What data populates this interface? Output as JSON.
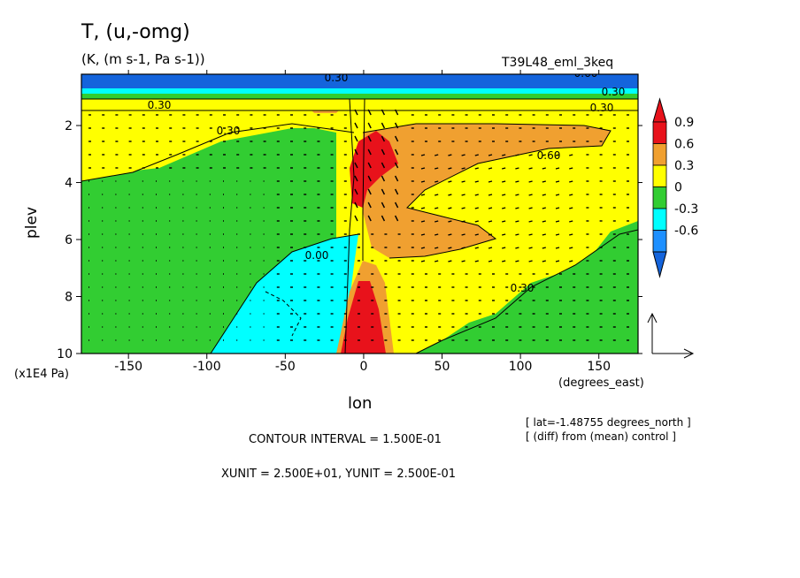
{
  "header": {
    "title": "T, (u,-omg)",
    "subtitle": "(K, (m s-1, Pa s-1))",
    "run_name": "T39L48_eml_3keq"
  },
  "footer": {
    "contour_interval": "CONTOUR INTERVAL = 1.500E-01",
    "units_line": "XUNIT = 2.500E+01, YUNIT = 2.500E-01",
    "lat_info": "[ lat=-1.48755 degrees_north ]",
    "diff_info": "[ (diff) from (mean) control ]"
  },
  "colors": {
    "red": "#e8121b",
    "orange": "#f0a030",
    "yellow": "#ffff00",
    "green": "#32cd32",
    "cyan": "#00ffff",
    "blue": "#1e90ff",
    "deepblue": "#1464dc"
  },
  "chart_data": {
    "type": "heatmap",
    "title": "T, (u,-omg)",
    "subtitle": "(K, (m s-1, Pa s-1))",
    "xlabel": "lon",
    "ylabel": "plev",
    "x_unit": "(degrees_east)",
    "y_unit": "(x1E4 Pa)",
    "xlim": [
      -180,
      175
    ],
    "ylim": [
      0.2,
      10
    ],
    "y_inverted": true,
    "x_ticks": [
      -150,
      -100,
      -50,
      0,
      50,
      100,
      150
    ],
    "y_ticks": [
      2,
      4,
      6,
      8,
      10
    ],
    "colorbar": {
      "levels": [
        "0.9",
        "0.6",
        "0.3",
        "0",
        "-0.3",
        "-0.6"
      ],
      "colors": [
        "#e8121b",
        "#f0a030",
        "#ffff00",
        "#32cd32",
        "#00ffff",
        "#1e90ff"
      ],
      "extend": "both"
    },
    "contour_labels": [
      "0.30",
      "0.30",
      "0.30",
      "0.60",
      "0.30",
      "0.00",
      "0.60",
      "0.30",
      "0.30"
    ],
    "regions": [
      {
        "level": "0.3 to 0.6",
        "lon": [
          -180,
          175
        ],
        "plev": [
          1.0,
          1.6
        ]
      },
      {
        "level": "0 to 0.3",
        "lon": [
          -180,
          -20
        ],
        "plev": [
          1.6,
          10
        ]
      },
      {
        "level": "-0.3 to 0",
        "lon": [
          -100,
          -5
        ],
        "plev": [
          6.0,
          10
        ]
      },
      {
        "level": "0.6 to 0.9",
        "lon": [
          10,
          150
        ],
        "plev": [
          1.7,
          6.5
        ]
      },
      {
        "level": "> 0.9",
        "lon": [
          -10,
          20
        ],
        "plev": [
          2.2,
          5.5
        ]
      },
      {
        "level": "> 0.9",
        "lon": [
          -10,
          15
        ],
        "plev": [
          7.5,
          10
        ]
      },
      {
        "level": "0 to 0.3",
        "lon": [
          40,
          175
        ],
        "plev": [
          5.0,
          10
        ]
      }
    ],
    "vector_reference": {
      "xunit": 25.0,
      "yunit": 0.25
    }
  }
}
